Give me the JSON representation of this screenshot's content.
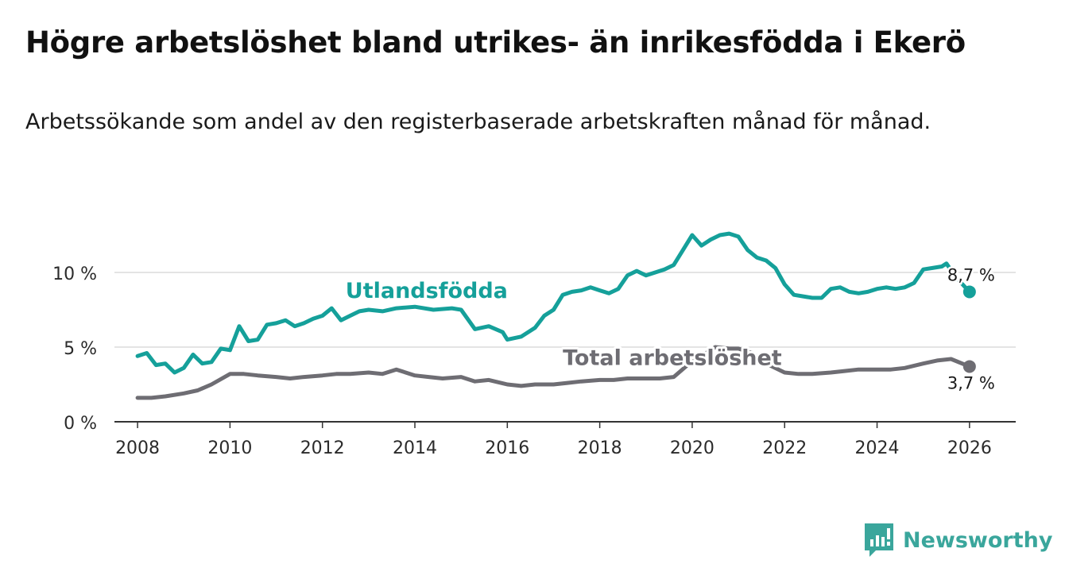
{
  "title": "Högre arbetslöshet bland utrikes- än inrikesfödda i Ekerö",
  "subtitle": "Arbetssökande som andel av den registerbaserade arbetskraften månad för månad.",
  "brand": {
    "name": "Newsworthy",
    "color": "#3aa69c"
  },
  "chart_data": {
    "type": "line",
    "title": "Högre arbetslöshet bland utrikes- än inrikesfödda i Ekerö",
    "subtitle": "Arbetssökande som andel av den registerbaserade arbetskraften månad för månad.",
    "xlabel": "",
    "ylabel": "",
    "xlim": [
      2007.5,
      2027.0
    ],
    "ylim": [
      0,
      13
    ],
    "x_ticks": [
      2008,
      2010,
      2012,
      2014,
      2016,
      2018,
      2020,
      2022,
      2024,
      2026
    ],
    "y_ticks": [
      {
        "value": 0,
        "label": "0 %"
      },
      {
        "value": 5,
        "label": "5 %"
      },
      {
        "value": 10,
        "label": "10 %"
      }
    ],
    "grid": "horizontal",
    "series": [
      {
        "name": "Utlandsfödda",
        "color": "#15a09a",
        "label_at": [
          2012.5,
          8.3
        ],
        "points": [
          [
            2008.0,
            4.4
          ],
          [
            2008.2,
            4.6
          ],
          [
            2008.4,
            3.8
          ],
          [
            2008.6,
            3.9
          ],
          [
            2008.8,
            3.3
          ],
          [
            2009.0,
            3.6
          ],
          [
            2009.2,
            4.5
          ],
          [
            2009.4,
            3.9
          ],
          [
            2009.6,
            4.0
          ],
          [
            2009.8,
            4.9
          ],
          [
            2010.0,
            4.8
          ],
          [
            2010.2,
            6.4
          ],
          [
            2010.4,
            5.4
          ],
          [
            2010.6,
            5.5
          ],
          [
            2010.8,
            6.5
          ],
          [
            2011.0,
            6.6
          ],
          [
            2011.2,
            6.8
          ],
          [
            2011.4,
            6.4
          ],
          [
            2011.6,
            6.6
          ],
          [
            2011.8,
            6.9
          ],
          [
            2012.0,
            7.1
          ],
          [
            2012.2,
            7.6
          ],
          [
            2012.4,
            6.8
          ],
          [
            2012.6,
            7.1
          ],
          [
            2012.8,
            7.4
          ],
          [
            2013.0,
            7.5
          ],
          [
            2013.3,
            7.4
          ],
          [
            2013.6,
            7.6
          ],
          [
            2014.0,
            7.7
          ],
          [
            2014.4,
            7.5
          ],
          [
            2014.8,
            7.6
          ],
          [
            2015.0,
            7.5
          ],
          [
            2015.3,
            6.2
          ],
          [
            2015.6,
            6.4
          ],
          [
            2015.9,
            6.0
          ],
          [
            2016.0,
            5.5
          ],
          [
            2016.3,
            5.7
          ],
          [
            2016.6,
            6.3
          ],
          [
            2016.8,
            7.1
          ],
          [
            2017.0,
            7.5
          ],
          [
            2017.2,
            8.5
          ],
          [
            2017.4,
            8.7
          ],
          [
            2017.6,
            8.8
          ],
          [
            2017.8,
            9.0
          ],
          [
            2018.0,
            8.8
          ],
          [
            2018.2,
            8.6
          ],
          [
            2018.4,
            8.9
          ],
          [
            2018.6,
            9.8
          ],
          [
            2018.8,
            10.1
          ],
          [
            2019.0,
            9.8
          ],
          [
            2019.2,
            10.0
          ],
          [
            2019.4,
            10.2
          ],
          [
            2019.6,
            10.5
          ],
          [
            2019.8,
            11.5
          ],
          [
            2020.0,
            12.5
          ],
          [
            2020.2,
            11.8
          ],
          [
            2020.4,
            12.2
          ],
          [
            2020.6,
            12.5
          ],
          [
            2020.8,
            12.6
          ],
          [
            2021.0,
            12.4
          ],
          [
            2021.2,
            11.5
          ],
          [
            2021.4,
            11.0
          ],
          [
            2021.6,
            10.8
          ],
          [
            2021.8,
            10.3
          ],
          [
            2022.0,
            9.2
          ],
          [
            2022.2,
            8.5
          ],
          [
            2022.4,
            8.4
          ],
          [
            2022.6,
            8.3
          ],
          [
            2022.8,
            8.3
          ],
          [
            2023.0,
            8.9
          ],
          [
            2023.2,
            9.0
          ],
          [
            2023.4,
            8.7
          ],
          [
            2023.6,
            8.6
          ],
          [
            2023.8,
            8.7
          ],
          [
            2024.0,
            8.9
          ],
          [
            2024.2,
            9.0
          ],
          [
            2024.4,
            8.9
          ],
          [
            2024.6,
            9.0
          ],
          [
            2024.8,
            9.3
          ],
          [
            2025.0,
            10.2
          ],
          [
            2025.2,
            10.3
          ],
          [
            2025.4,
            10.4
          ],
          [
            2025.5,
            10.6
          ],
          [
            2025.7,
            9.7
          ],
          [
            2026.0,
            8.7
          ]
        ],
        "last_value_label": "8,7 %"
      },
      {
        "name": "Total arbetslöshet",
        "color": "#6e6d73",
        "label_at": [
          2017.2,
          3.8
        ],
        "points": [
          [
            2008.0,
            1.6
          ],
          [
            2008.3,
            1.6
          ],
          [
            2008.6,
            1.7
          ],
          [
            2009.0,
            1.9
          ],
          [
            2009.3,
            2.1
          ],
          [
            2009.6,
            2.5
          ],
          [
            2010.0,
            3.2
          ],
          [
            2010.3,
            3.2
          ],
          [
            2010.6,
            3.1
          ],
          [
            2011.0,
            3.0
          ],
          [
            2011.3,
            2.9
          ],
          [
            2011.6,
            3.0
          ],
          [
            2012.0,
            3.1
          ],
          [
            2012.3,
            3.2
          ],
          [
            2012.6,
            3.2
          ],
          [
            2013.0,
            3.3
          ],
          [
            2013.3,
            3.2
          ],
          [
            2013.6,
            3.5
          ],
          [
            2014.0,
            3.1
          ],
          [
            2014.3,
            3.0
          ],
          [
            2014.6,
            2.9
          ],
          [
            2015.0,
            3.0
          ],
          [
            2015.3,
            2.7
          ],
          [
            2015.6,
            2.8
          ],
          [
            2016.0,
            2.5
          ],
          [
            2016.3,
            2.4
          ],
          [
            2016.6,
            2.5
          ],
          [
            2017.0,
            2.5
          ],
          [
            2017.3,
            2.6
          ],
          [
            2017.6,
            2.7
          ],
          [
            2018.0,
            2.8
          ],
          [
            2018.3,
            2.8
          ],
          [
            2018.6,
            2.9
          ],
          [
            2019.0,
            2.9
          ],
          [
            2019.3,
            2.9
          ],
          [
            2019.6,
            3.0
          ],
          [
            2019.9,
            3.8
          ],
          [
            2020.2,
            4.4
          ],
          [
            2020.5,
            5.0
          ],
          [
            2020.8,
            4.9
          ],
          [
            2021.0,
            4.9
          ],
          [
            2021.3,
            4.6
          ],
          [
            2021.6,
            3.9
          ],
          [
            2022.0,
            3.3
          ],
          [
            2022.3,
            3.2
          ],
          [
            2022.6,
            3.2
          ],
          [
            2023.0,
            3.3
          ],
          [
            2023.3,
            3.4
          ],
          [
            2023.6,
            3.5
          ],
          [
            2024.0,
            3.5
          ],
          [
            2024.3,
            3.5
          ],
          [
            2024.6,
            3.6
          ],
          [
            2025.0,
            3.9
          ],
          [
            2025.3,
            4.1
          ],
          [
            2025.6,
            4.2
          ],
          [
            2026.0,
            3.7
          ]
        ],
        "last_value_label": "3,7 %"
      }
    ]
  }
}
